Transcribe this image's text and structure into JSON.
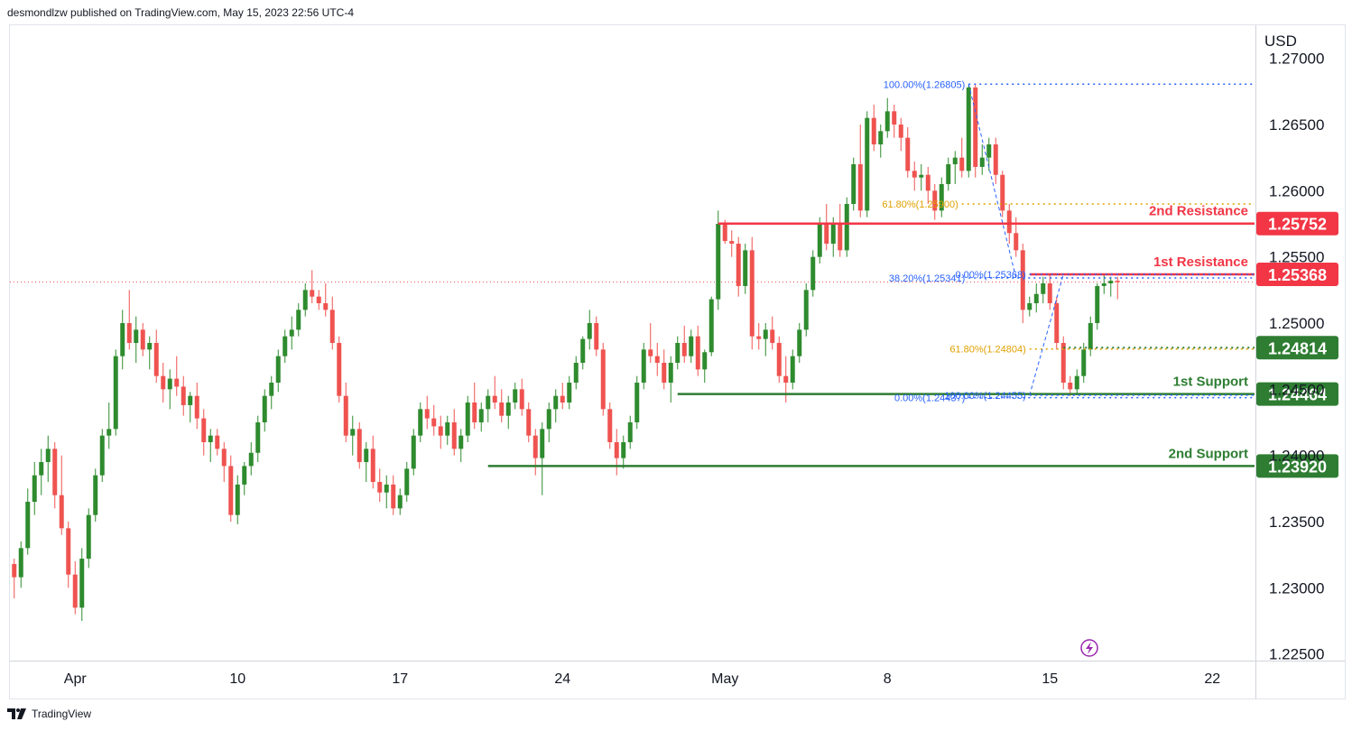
{
  "header": {
    "published_by": "desmondlzw published on TradingView.com, May 15, 2023 22:56 UTC-4"
  },
  "footer": {
    "logo_text": "TradingView"
  },
  "colors": {
    "up": "#2e8b2e",
    "down": "#ef5350",
    "resistance": "#f23645",
    "support": "#2e7d32",
    "fib_blue": "#2962ff",
    "fib_orange": "#e0a100",
    "axis_line": "#d1d4dc",
    "grid": "#ffffff"
  },
  "chart_data": {
    "type": "candlestick",
    "currency_label": "USD",
    "ylim": [
      1.2245,
      1.2725
    ],
    "y_ticks": [
      "1.27000",
      "1.26500",
      "1.26000",
      "1.25500",
      "1.25000",
      "1.24500",
      "1.24000",
      "1.23500",
      "1.23000",
      "1.22500"
    ],
    "x_ticks": [
      {
        "label": "Apr",
        "bar": 9
      },
      {
        "label": "10",
        "bar": 33
      },
      {
        "label": "17",
        "bar": 57
      },
      {
        "label": "24",
        "bar": 81
      },
      {
        "label": "May",
        "bar": 105
      },
      {
        "label": "8",
        "bar": 129
      },
      {
        "label": "15",
        "bar": 153
      },
      {
        "label": "22",
        "bar": 177
      }
    ],
    "bars_total": 184,
    "levels": [
      {
        "name": "2nd Resistance",
        "value": 1.25752,
        "value_label": "1.25752",
        "kind": "resistance",
        "start_bar": 104
      },
      {
        "name": "1st Resistance",
        "value": 1.25368,
        "value_label": "1.25368",
        "kind": "resistance",
        "start_bar": 150
      },
      {
        "name": "",
        "value": 1.24814,
        "value_label": "1.24814",
        "kind": "support",
        "start_bar": 155,
        "dotted": true
      },
      {
        "name": "1st Support",
        "value": 1.24464,
        "value_label": "1.24464",
        "kind": "support",
        "start_bar": 98
      },
      {
        "name": "2nd Support",
        "value": 1.2392,
        "value_label": "1.23920",
        "kind": "support",
        "start_bar": 70
      }
    ],
    "fib_labels": [
      {
        "text": "100.00%(1.26805)",
        "value": 1.26805,
        "color": "blue",
        "bar": 141
      },
      {
        "text": "61.80%(1.25900)",
        "value": 1.259,
        "color": "orange",
        "bar": 140
      },
      {
        "text": "38.20%(1.25341)",
        "value": 1.25341,
        "color": "blue",
        "bar": 141
      },
      {
        "text": "0.00%(1.25368)",
        "value": 1.25368,
        "color": "blue",
        "bar": 150
      },
      {
        "text": "61.80%(1.24804)",
        "value": 1.24804,
        "color": "orange",
        "bar": 150
      },
      {
        "text": "0.00%(1.24437)",
        "value": 1.24437,
        "color": "blue",
        "bar": 141
      },
      {
        "text": "100.00%(1.24455)",
        "value": 1.24455,
        "color": "blue",
        "bar": 150
      }
    ],
    "last_price": 1.2531,
    "candles": [
      [
        1.2318,
        1.2322,
        1.2292,
        1.2308
      ],
      [
        1.2308,
        1.2335,
        1.23,
        1.233
      ],
      [
        1.233,
        1.2375,
        1.2325,
        1.2365
      ],
      [
        1.2365,
        1.2395,
        1.2355,
        1.2385
      ],
      [
        1.2385,
        1.2405,
        1.237,
        1.2395
      ],
      [
        1.2395,
        1.2415,
        1.238,
        1.2405
      ],
      [
        1.2405,
        1.241,
        1.236,
        1.237
      ],
      [
        1.237,
        1.24,
        1.234,
        1.2345
      ],
      [
        1.2345,
        1.235,
        1.23,
        1.231
      ],
      [
        1.231,
        1.232,
        1.228,
        1.2285
      ],
      [
        1.2285,
        1.233,
        1.2275,
        1.2322
      ],
      [
        1.2322,
        1.236,
        1.2315,
        1.2355
      ],
      [
        1.2355,
        1.239,
        1.235,
        1.2385
      ],
      [
        1.2385,
        1.242,
        1.238,
        1.2415
      ],
      [
        1.2415,
        1.244,
        1.2405,
        1.242
      ],
      [
        1.242,
        1.248,
        1.2415,
        1.2475
      ],
      [
        1.2475,
        1.251,
        1.2465,
        1.25
      ],
      [
        1.25,
        1.2525,
        1.248,
        1.2485
      ],
      [
        1.2485,
        1.2505,
        1.247,
        1.2495
      ],
      [
        1.2495,
        1.25,
        1.2475,
        1.248
      ],
      [
        1.248,
        1.249,
        1.2465,
        1.2485
      ],
      [
        1.2485,
        1.2495,
        1.2455,
        1.246
      ],
      [
        1.246,
        1.247,
        1.244,
        1.245
      ],
      [
        1.245,
        1.2465,
        1.2435,
        1.2458
      ],
      [
        1.2458,
        1.2475,
        1.2445,
        1.2452
      ],
      [
        1.2452,
        1.246,
        1.243,
        1.2438
      ],
      [
        1.2438,
        1.2448,
        1.2425,
        1.2445
      ],
      [
        1.2445,
        1.2455,
        1.242,
        1.2428
      ],
      [
        1.2428,
        1.2435,
        1.24,
        1.241
      ],
      [
        1.241,
        1.242,
        1.2395,
        1.2415
      ],
      [
        1.2415,
        1.242,
        1.24,
        1.2405
      ],
      [
        1.2405,
        1.241,
        1.238,
        1.2392
      ],
      [
        1.2392,
        1.24,
        1.235,
        1.2355
      ],
      [
        1.2355,
        1.2385,
        1.2348,
        1.2378
      ],
      [
        1.2378,
        1.2395,
        1.237,
        1.2392
      ],
      [
        1.2392,
        1.241,
        1.2385,
        1.2402
      ],
      [
        1.2402,
        1.243,
        1.2395,
        1.2425
      ],
      [
        1.2425,
        1.245,
        1.2418,
        1.2445
      ],
      [
        1.2445,
        1.246,
        1.2435,
        1.2455
      ],
      [
        1.2455,
        1.248,
        1.2448,
        1.2475
      ],
      [
        1.2475,
        1.2495,
        1.247,
        1.249
      ],
      [
        1.249,
        1.2505,
        1.248,
        1.2495
      ],
      [
        1.2495,
        1.2515,
        1.249,
        1.251
      ],
      [
        1.251,
        1.253,
        1.2505,
        1.2525
      ],
      [
        1.2525,
        1.254,
        1.2515,
        1.252
      ],
      [
        1.252,
        1.2525,
        1.251,
        1.2515
      ],
      [
        1.2515,
        1.253,
        1.2505,
        1.251
      ],
      [
        1.251,
        1.252,
        1.248,
        1.2485
      ],
      [
        1.2485,
        1.249,
        1.244,
        1.2445
      ],
      [
        1.2445,
        1.2455,
        1.241,
        1.2415
      ],
      [
        1.2415,
        1.243,
        1.24,
        1.242
      ],
      [
        1.242,
        1.2425,
        1.239,
        1.2395
      ],
      [
        1.2395,
        1.241,
        1.238,
        1.2405
      ],
      [
        1.2405,
        1.2415,
        1.2375,
        1.238
      ],
      [
        1.238,
        1.239,
        1.2365,
        1.2372
      ],
      [
        1.2372,
        1.2385,
        1.236,
        1.2378
      ],
      [
        1.2378,
        1.2385,
        1.2355,
        1.236
      ],
      [
        1.236,
        1.2375,
        1.2355,
        1.237
      ],
      [
        1.237,
        1.2395,
        1.2365,
        1.239
      ],
      [
        1.239,
        1.242,
        1.2385,
        1.2415
      ],
      [
        1.2415,
        1.244,
        1.241,
        1.2435
      ],
      [
        1.2435,
        1.2445,
        1.242,
        1.2428
      ],
      [
        1.2428,
        1.2438,
        1.2415,
        1.2422
      ],
      [
        1.2422,
        1.243,
        1.2405,
        1.2415
      ],
      [
        1.2415,
        1.243,
        1.2408,
        1.2425
      ],
      [
        1.2425,
        1.2435,
        1.24,
        1.2405
      ],
      [
        1.2405,
        1.242,
        1.2395,
        1.2415
      ],
      [
        1.2415,
        1.2445,
        1.241,
        1.244
      ],
      [
        1.244,
        1.2455,
        1.242,
        1.2425
      ],
      [
        1.2425,
        1.244,
        1.2418,
        1.2435
      ],
      [
        1.2435,
        1.245,
        1.2425,
        1.2445
      ],
      [
        1.2445,
        1.246,
        1.2435,
        1.244
      ],
      [
        1.244,
        1.245,
        1.2425,
        1.243
      ],
      [
        1.243,
        1.2445,
        1.242,
        1.244
      ],
      [
        1.244,
        1.2455,
        1.2435,
        1.245
      ],
      [
        1.245,
        1.2458,
        1.243,
        1.2435
      ],
      [
        1.2435,
        1.244,
        1.241,
        1.2415
      ],
      [
        1.2415,
        1.242,
        1.2385,
        1.2398
      ],
      [
        1.2398,
        1.2425,
        1.237,
        1.242
      ],
      [
        1.242,
        1.244,
        1.241,
        1.2435
      ],
      [
        1.2435,
        1.245,
        1.2425,
        1.2445
      ],
      [
        1.2445,
        1.2455,
        1.2435,
        1.244
      ],
      [
        1.244,
        1.246,
        1.2435,
        1.2455
      ],
      [
        1.2455,
        1.2475,
        1.245,
        1.247
      ],
      [
        1.247,
        1.249,
        1.2465,
        1.2488
      ],
      [
        1.2488,
        1.251,
        1.248,
        1.25
      ],
      [
        1.25,
        1.2505,
        1.2475,
        1.248
      ],
      [
        1.248,
        1.2485,
        1.243,
        1.2435
      ],
      [
        1.2435,
        1.244,
        1.2405,
        1.241
      ],
      [
        1.241,
        1.242,
        1.2385,
        1.2398
      ],
      [
        1.2398,
        1.2415,
        1.239,
        1.241
      ],
      [
        1.241,
        1.243,
        1.2405,
        1.2425
      ],
      [
        1.2425,
        1.246,
        1.242,
        1.2455
      ],
      [
        1.2455,
        1.2485,
        1.245,
        1.248
      ],
      [
        1.248,
        1.25,
        1.247,
        1.2475
      ],
      [
        1.2475,
        1.2485,
        1.246,
        1.247
      ],
      [
        1.247,
        1.248,
        1.245,
        1.2455
      ],
      [
        1.2455,
        1.2475,
        1.244,
        1.247
      ],
      [
        1.247,
        1.249,
        1.2465,
        1.2485
      ],
      [
        1.2485,
        1.2498,
        1.247,
        1.2475
      ],
      [
        1.2475,
        1.2495,
        1.247,
        1.249
      ],
      [
        1.249,
        1.2498,
        1.246,
        1.2465
      ],
      [
        1.2465,
        1.248,
        1.2455,
        1.2478
      ],
      [
        1.2478,
        1.252,
        1.2475,
        1.2518
      ],
      [
        1.2518,
        1.2585,
        1.251,
        1.2575
      ],
      [
        1.2575,
        1.2578,
        1.256,
        1.2562
      ],
      [
        1.2562,
        1.257,
        1.255,
        1.256
      ],
      [
        1.256,
        1.2565,
        1.252,
        1.2528
      ],
      [
        1.2528,
        1.256,
        1.2522,
        1.2555
      ],
      [
        1.2555,
        1.2565,
        1.248,
        1.249
      ],
      [
        1.249,
        1.25,
        1.248,
        1.2488
      ],
      [
        1.2488,
        1.25,
        1.2475,
        1.2495
      ],
      [
        1.2495,
        1.2505,
        1.248,
        1.2485
      ],
      [
        1.2485,
        1.249,
        1.2455,
        1.246
      ],
      [
        1.246,
        1.2475,
        1.244,
        1.2455
      ],
      [
        1.2455,
        1.248,
        1.245,
        1.2475
      ],
      [
        1.2475,
        1.25,
        1.247,
        1.2495
      ],
      [
        1.2495,
        1.253,
        1.249,
        1.2525
      ],
      [
        1.2525,
        1.2555,
        1.252,
        1.255
      ],
      [
        1.255,
        1.258,
        1.2545,
        1.2575
      ],
      [
        1.2575,
        1.259,
        1.2555,
        1.256
      ],
      [
        1.256,
        1.258,
        1.255,
        1.2575
      ],
      [
        1.2575,
        1.259,
        1.255,
        1.2555
      ],
      [
        1.2555,
        1.2595,
        1.255,
        1.259
      ],
      [
        1.259,
        1.2625,
        1.2585,
        1.262
      ],
      [
        1.262,
        1.265,
        1.258,
        1.2585
      ],
      [
        1.2585,
        1.266,
        1.258,
        1.2655
      ],
      [
        1.2655,
        1.2665,
        1.263,
        1.2635
      ],
      [
        1.2635,
        1.265,
        1.2625,
        1.2645
      ],
      [
        1.2645,
        1.267,
        1.264,
        1.266
      ],
      [
        1.266,
        1.2665,
        1.264,
        1.265
      ],
      [
        1.265,
        1.2655,
        1.263,
        1.264
      ],
      [
        1.264,
        1.2648,
        1.261,
        1.2615
      ],
      [
        1.2615,
        1.2622,
        1.26,
        1.261
      ],
      [
        1.261,
        1.262,
        1.26,
        1.2612
      ],
      [
        1.2612,
        1.2618,
        1.259,
        1.26
      ],
      [
        1.26,
        1.2605,
        1.2578,
        1.2585
      ],
      [
        1.2585,
        1.261,
        1.258,
        1.2605
      ],
      [
        1.2605,
        1.2625,
        1.26,
        1.262
      ],
      [
        1.262,
        1.263,
        1.2605,
        1.2625
      ],
      [
        1.2625,
        1.264,
        1.261,
        1.2615
      ],
      [
        1.2615,
        1.268,
        1.261,
        1.2678
      ],
      [
        1.2678,
        1.2681,
        1.261,
        1.2618
      ],
      [
        1.2618,
        1.2635,
        1.2612,
        1.2625
      ],
      [
        1.2625,
        1.264,
        1.2615,
        1.2635
      ],
      [
        1.2635,
        1.264,
        1.2605,
        1.2612
      ],
      [
        1.2612,
        1.2615,
        1.258,
        1.2585
      ],
      [
        1.2585,
        1.259,
        1.256,
        1.2568
      ],
      [
        1.2568,
        1.258,
        1.255,
        1.2555
      ],
      [
        1.2555,
        1.256,
        1.25,
        1.251
      ],
      [
        1.251,
        1.252,
        1.2505,
        1.2515
      ],
      [
        1.2515,
        1.253,
        1.2508,
        1.2522
      ],
      [
        1.2522,
        1.2535,
        1.2515,
        1.253
      ],
      [
        1.253,
        1.2537,
        1.251,
        1.2515
      ],
      [
        1.2515,
        1.252,
        1.248,
        1.2485
      ],
      [
        1.2485,
        1.249,
        1.245,
        1.2455
      ],
      [
        1.2455,
        1.246,
        1.2445,
        1.245
      ],
      [
        1.245,
        1.2465,
        1.2446,
        1.246
      ],
      [
        1.246,
        1.2485,
        1.2455,
        1.248
      ],
      [
        1.248,
        1.2505,
        1.2475,
        1.25
      ],
      [
        1.25,
        1.253,
        1.2495,
        1.2528
      ],
      [
        1.2528,
        1.2537,
        1.2522,
        1.253
      ],
      [
        1.253,
        1.2535,
        1.252,
        1.2532
      ],
      [
        1.2532,
        1.2535,
        1.2518,
        1.2531
      ]
    ]
  }
}
